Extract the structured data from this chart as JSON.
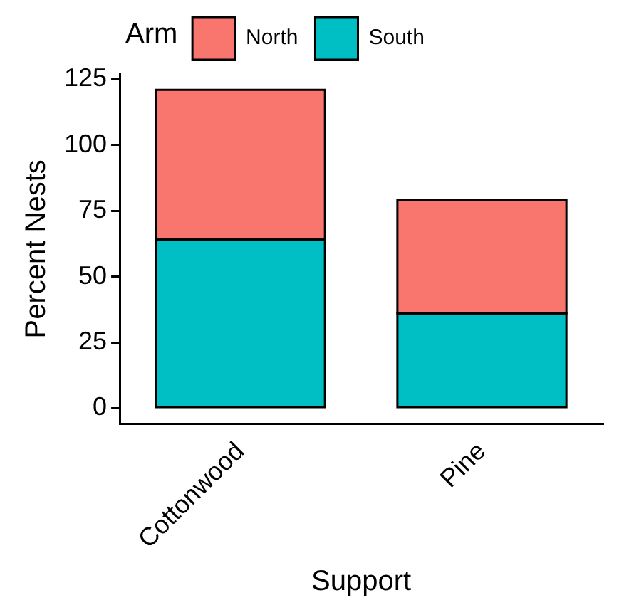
{
  "chart_data": {
    "type": "bar",
    "stacked": true,
    "xlabel": "Support",
    "ylabel": "Percent Nests",
    "legend_title": "Arm",
    "legend": "top",
    "grid": false,
    "categories": [
      "Cottonwood",
      "Pine"
    ],
    "series": [
      {
        "name": "South",
        "color": "#00bfc4",
        "values": [
          64,
          36
        ]
      },
      {
        "name": "North",
        "color": "#f8766d",
        "values": [
          57,
          43
        ]
      }
    ],
    "ylim": [
      -6,
      127
    ],
    "yticks": [
      0,
      25,
      50,
      75,
      100,
      125
    ]
  }
}
